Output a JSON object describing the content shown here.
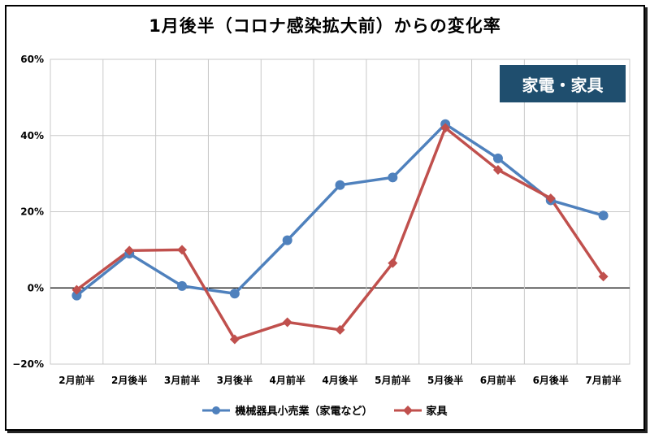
{
  "badge": "家電・家具",
  "chart_data": {
    "type": "line",
    "title": "1月後半（コロナ感染拡大前）からの変化率",
    "categories": [
      "2月前半",
      "2月後半",
      "3月前半",
      "3月後半",
      "4月前半",
      "4月後半",
      "5月前半",
      "5月後半",
      "6月前半",
      "6月後半",
      "7月前半"
    ],
    "ylim": [
      -20,
      60
    ],
    "yticks": [
      -20,
      0,
      20,
      40,
      60
    ],
    "ytick_labels": [
      "−20%",
      "0%",
      "20%",
      "40%",
      "60%"
    ],
    "grid": true,
    "legend_position": "bottom",
    "series": [
      {
        "name": "機械器具小売業（家電など）",
        "color": "#4f81bd",
        "marker": "circle",
        "values": [
          -2,
          9,
          0.5,
          -1.5,
          12.5,
          27,
          29,
          43,
          34,
          23,
          19
        ]
      },
      {
        "name": "家具",
        "color": "#c0504d",
        "marker": "diamond",
        "values": [
          -0.5,
          9.8,
          10,
          -13.5,
          -9,
          -11,
          6.5,
          42,
          31,
          23.5,
          3
        ]
      }
    ]
  }
}
